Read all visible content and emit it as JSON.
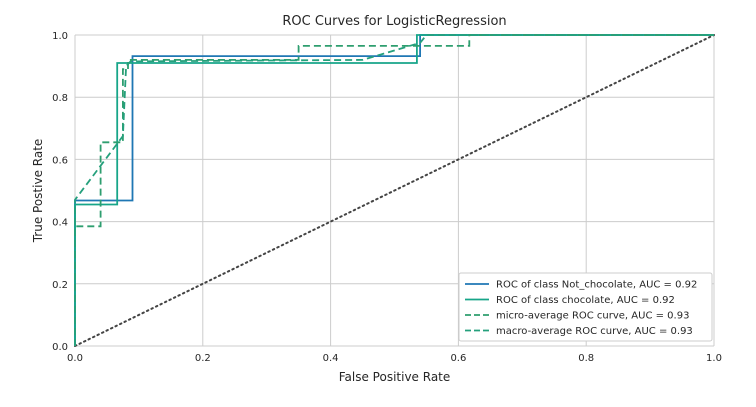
{
  "chart_data": {
    "type": "line",
    "title": "ROC Curves for LogisticRegression",
    "xlabel": "False Positive Rate",
    "ylabel": "True Postive Rate",
    "xlim": [
      0,
      1
    ],
    "ylim": [
      0,
      1
    ],
    "xticks": [
      "0.0",
      "0.2",
      "0.4",
      "0.6",
      "0.8",
      "1.0"
    ],
    "yticks": [
      "0.0",
      "0.2",
      "0.4",
      "0.6",
      "0.8",
      "1.0"
    ],
    "grid": true,
    "legend_position": "bottom-right",
    "series": [
      {
        "name": "ROC of class Not_chocolate, AUC = 0.92",
        "color": "#1f77b4",
        "dash": "solid",
        "x": [
          0,
          0,
          0.09,
          0.09,
          0.54,
          0.54,
          1,
          1
        ],
        "y": [
          0,
          0.468,
          0.468,
          0.932,
          0.932,
          1.0,
          1.0,
          1.0
        ]
      },
      {
        "name": "ROC of class chocolate, AUC = 0.92",
        "color": "#17a589",
        "dash": "solid",
        "x": [
          0,
          0,
          0.066,
          0.066,
          0.535,
          0.535,
          1,
          1
        ],
        "y": [
          0,
          0.455,
          0.455,
          0.91,
          0.91,
          1.0,
          1.0,
          1.0
        ]
      },
      {
        "name": "micro-average ROC curve, AUC = 0.93",
        "color": "#2e9e6f",
        "dash": "dashed",
        "x": [
          0,
          0,
          0.04,
          0.04,
          0.075,
          0.075,
          0.083,
          0.083,
          0.35,
          0.35,
          0.617,
          0.617,
          1
        ],
        "y": [
          0,
          0.385,
          0.385,
          0.655,
          0.655,
          0.89,
          0.89,
          0.92,
          0.92,
          0.965,
          0.965,
          1.0,
          1.0
        ]
      },
      {
        "name": "macro-average ROC curve, AUC = 0.93",
        "color": "#25a07c",
        "dash": "dashed",
        "x": [
          0,
          0,
          0.075,
          0.08,
          0.087,
          0.45,
          0.54,
          0.55,
          1
        ],
        "y": [
          0,
          0.47,
          0.675,
          0.9,
          0.915,
          0.92,
          0.975,
          1.0,
          1.0
        ]
      }
    ],
    "diagonal": {
      "x": [
        0,
        1
      ],
      "y": [
        0,
        1
      ],
      "color": "#444444",
      "style": "dotted"
    }
  }
}
